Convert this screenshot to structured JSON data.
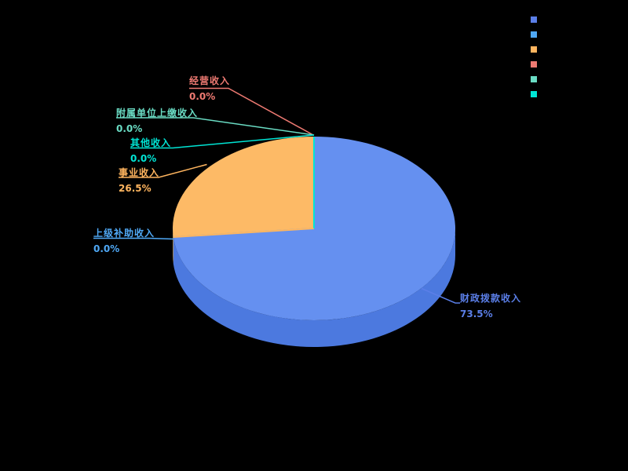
{
  "page": {
    "background": "#000000"
  },
  "chart_data": {
    "type": "pie",
    "subtype": "pie3d",
    "title": "",
    "legend_position": "top-right",
    "legend_labels_visible": false,
    "start_angle_deg": 90,
    "direction": "clockwise",
    "series": [
      {
        "name": "财政拨款收入",
        "value": 73.5,
        "pct_label": "73.5%",
        "color": "#5B7FE8",
        "slice_color": "#6590F0"
      },
      {
        "name": "上级补助收入",
        "value": 0.0,
        "pct_label": "0.0%",
        "color": "#4FA8F5"
      },
      {
        "name": "事业收入",
        "value": 26.5,
        "pct_label": "26.5%",
        "color": "#FFB55F",
        "slice_color": "#FDBA66"
      },
      {
        "name": "经营收入",
        "value": 0.0,
        "pct_label": "0.0%",
        "color": "#EE7A72"
      },
      {
        "name": "附属单位上缴收入",
        "value": 0.0,
        "pct_label": "0.0%",
        "color": "#6ADCC4"
      },
      {
        "name": "其他收入",
        "value": 0.0,
        "pct_label": "0.0%",
        "color": "#00E5D5"
      }
    ]
  }
}
